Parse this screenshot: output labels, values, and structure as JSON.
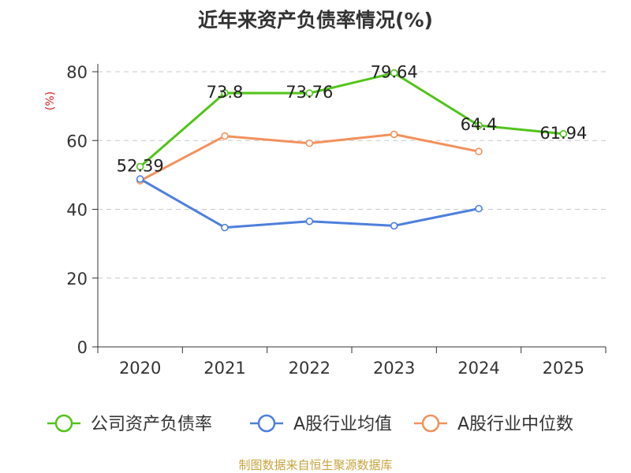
{
  "chart_data": {
    "type": "line",
    "title": "近年来资产负债率情况(%)",
    "ylabel": "(%)",
    "xlabel": "",
    "ylim": [
      0,
      80
    ],
    "yticks": [
      0,
      20,
      40,
      60,
      80
    ],
    "grid": true,
    "legend_position": "bottom",
    "categories": [
      "2020",
      "2021",
      "2022",
      "2023",
      "2024",
      "2025"
    ],
    "series": [
      {
        "name": "公司资产负债率",
        "color": "#52c41a",
        "values": [
          52.39,
          73.8,
          73.76,
          79.64,
          64.4,
          61.94
        ],
        "labels": [
          "52.39",
          "73.8",
          "73.76",
          "79.64",
          "64.4",
          "61.94"
        ]
      },
      {
        "name": "A股行业均值",
        "color": "#4e7fdc",
        "values": [
          48.8,
          34.7,
          36.5,
          35.2,
          40.2,
          null
        ]
      },
      {
        "name": "A股行业中位数",
        "color": "#f2915c",
        "values": [
          48.3,
          61.3,
          59.2,
          61.8,
          56.8,
          null
        ]
      }
    ]
  },
  "footer": "制图数据来自恒生聚源数据库"
}
